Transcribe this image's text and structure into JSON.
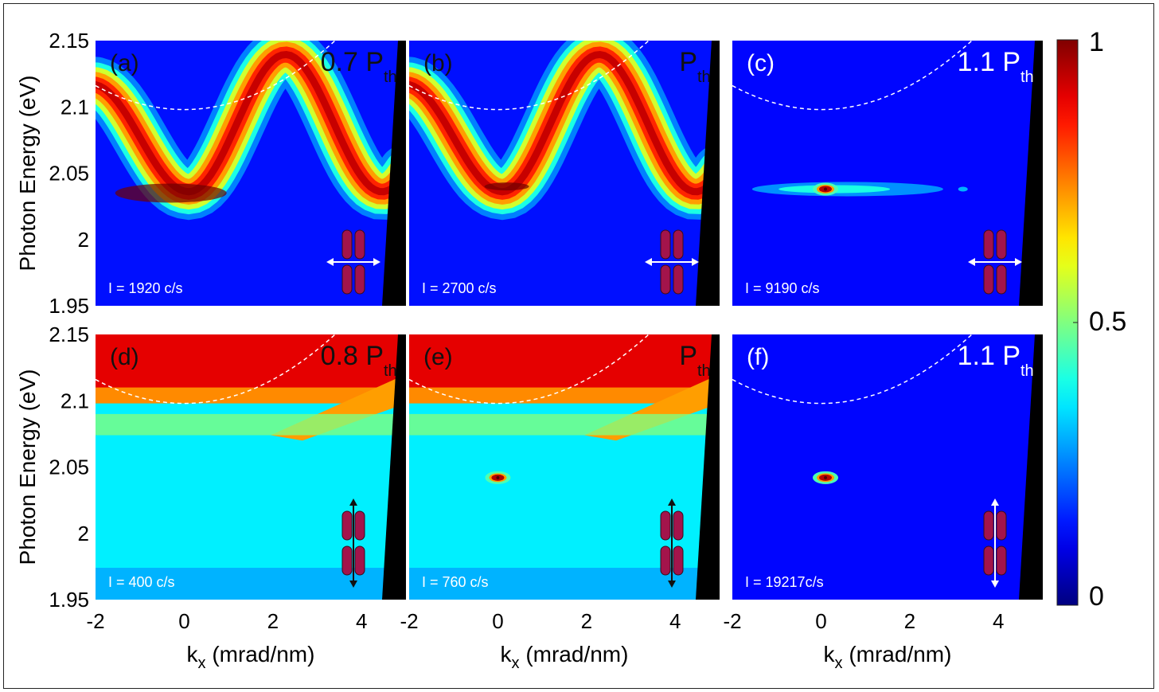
{
  "chart_data": {
    "type": "heatmap",
    "colorbar": {
      "ticks": [
        "1",
        "0.5",
        "0"
      ],
      "range": [
        0,
        1
      ],
      "colormap": "jet"
    },
    "axes": {
      "ylabel": "Photon Energy (eV)",
      "xlabel_main": "k",
      "xlabel_sub": "x",
      "xlabel_unit": " (mrad/nm)",
      "xlim": [
        -2,
        5
      ],
      "ylim": [
        1.95,
        2.15
      ],
      "xticks": [
        "-2",
        "0",
        "2",
        "4"
      ],
      "yticks": [
        "2.15",
        "2.1",
        "2.05",
        "2",
        "1.95"
      ]
    },
    "panels": [
      {
        "label": "(a)",
        "power_main": "0.7 P",
        "power_sub": "th",
        "intensity": "I = 1920 c/s",
        "mode": "dispersion",
        "peak_k": -0.3,
        "peak_E": 2.035,
        "condensate": false,
        "polarization": "horizontal",
        "dark_text": true
      },
      {
        "label": "(b)",
        "power_main": "P",
        "power_sub": "th",
        "intensity": "I = 2700 c/s",
        "mode": "dispersion",
        "peak_k": 0.2,
        "peak_E": 2.04,
        "condensate": false,
        "polarization": "horizontal",
        "dark_text": true
      },
      {
        "label": "(c)",
        "power_main": "1.1 P",
        "power_sub": "th",
        "intensity": "I = 9190 c/s",
        "mode": "condensate-line",
        "peak_k": 0.1,
        "peak_E": 2.038,
        "condensate": true,
        "polarization": "horizontal",
        "dark_text": false
      },
      {
        "label": "(d)",
        "power_main": "0.8 P",
        "power_sub": "th",
        "intensity": "I = 400 c/s",
        "mode": "flat",
        "peak_k": null,
        "peak_E": null,
        "condensate": false,
        "polarization": "vertical",
        "dark_text": true
      },
      {
        "label": "(e)",
        "power_main": "P",
        "power_sub": "th",
        "intensity": "I = 760 c/s",
        "mode": "flat",
        "peak_k": 0.0,
        "peak_E": 2.042,
        "condensate": true,
        "polarization": "vertical",
        "dark_text": true
      },
      {
        "label": "(f)",
        "power_main": "1.1 P",
        "power_sub": "th",
        "intensity": "I = 19217c/s",
        "mode": "condensate-spot",
        "peak_k": 0.1,
        "peak_E": 2.042,
        "condensate": true,
        "polarization": "vertical",
        "dark_text": false
      }
    ]
  }
}
